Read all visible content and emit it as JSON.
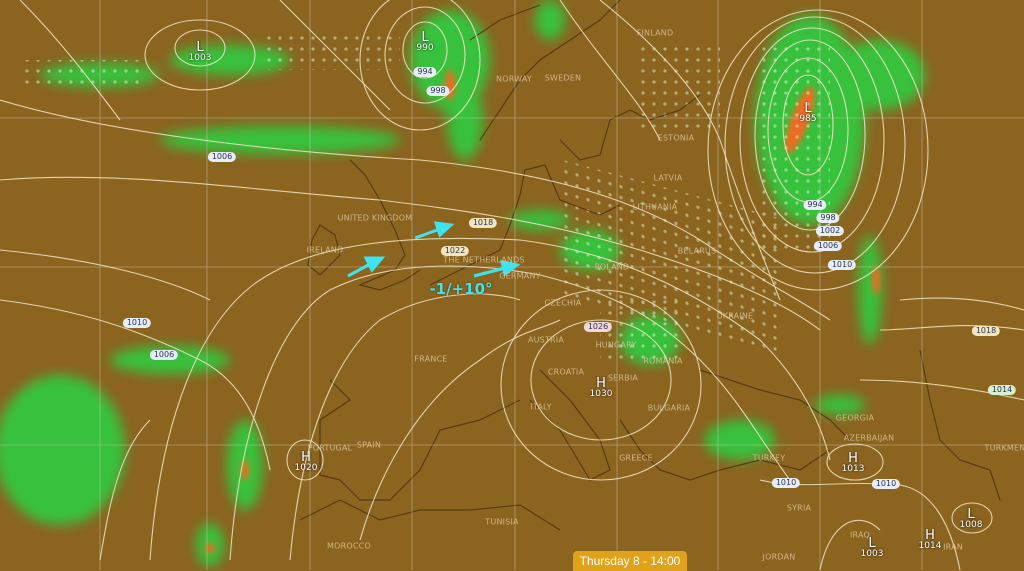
{
  "map": {
    "colors": {
      "land": "#8b6420",
      "precip_light": "#2ecc40",
      "precip_heavy": "#f06a20",
      "isobar": "#f3e6c4",
      "wind_arrow": "#3fe3f0",
      "grid": "#c8c0b0"
    },
    "overlay_label": "-1/+10°",
    "wind_arrow_icon": "arrow-icon",
    "timestamp": "Thursday 8 - 14:00",
    "pressure_systems": [
      {
        "type": "L",
        "value": "1003"
      },
      {
        "type": "L",
        "value": "990"
      },
      {
        "type": "L",
        "value": "985"
      },
      {
        "type": "H",
        "value": "1030"
      },
      {
        "type": "H",
        "value": "1020"
      },
      {
        "type": "H",
        "value": "1013"
      },
      {
        "type": "L",
        "value": "1003"
      },
      {
        "type": "H",
        "value": "1014"
      },
      {
        "type": "L",
        "value": "1008"
      }
    ],
    "isobar_labels": [
      "1006",
      "994",
      "998",
      "1018",
      "1022",
      "1010",
      "1006",
      "1026",
      "994",
      "998",
      "1002",
      "1006",
      "1010",
      "1018",
      "1014",
      "1010",
      "1010"
    ],
    "countries": [
      "UNITED KINGDOM",
      "IRELAND",
      "THE NETHERLANDS",
      "GERMANY",
      "NORWAY",
      "SWEDEN",
      "FINLAND",
      "ESTONIA",
      "LATVIA",
      "LITHUANIA",
      "BELARUS",
      "POLAND",
      "UKRAINE",
      "CZECHIA",
      "AUSTRIA",
      "HUNGARY",
      "ROMANIA",
      "CROATIA",
      "SERBIA",
      "BULGARIA",
      "ITALY",
      "GREECE",
      "TURKEY",
      "GEORGIA",
      "AZERBAIJAN",
      "TURKMEN",
      "SYRIA",
      "IRAQ",
      "IRAN",
      "JORDAN",
      "FRANCE",
      "SPAIN",
      "PORTUGAL",
      "MOROCCO",
      "TUNISIA"
    ]
  }
}
